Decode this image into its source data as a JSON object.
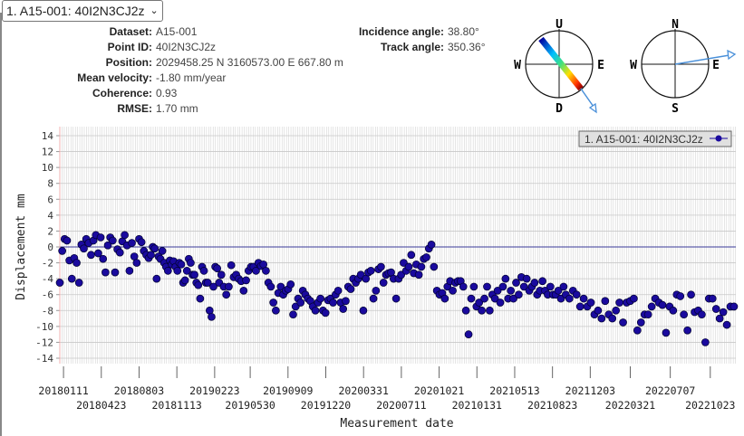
{
  "selector": {
    "value": "1. A15-001: 40I2N3CJ2z"
  },
  "info_left": [
    {
      "label": "Dataset:",
      "value": "A15-001"
    },
    {
      "label": "Point ID:",
      "value": "40I2N3CJ2z"
    },
    {
      "label": "Position:",
      "value": "2029458.25 N 3160573.00 E 667.80 m"
    },
    {
      "label": "Mean velocity:",
      "value": "-1.80 mm/year"
    },
    {
      "label": "Coherence:",
      "value": "0.93"
    },
    {
      "label": "RMSE:",
      "value": "1.70 mm"
    }
  ],
  "info_right": [
    {
      "label": "Incidence angle:",
      "value": "38.80°"
    },
    {
      "label": "Track angle:",
      "value": "350.36°"
    }
  ],
  "compass_vertical": {
    "top": "U",
    "bottom": "D",
    "left": "W",
    "right": "E"
  },
  "compass_horizontal": {
    "top": "N",
    "bottom": "S",
    "left": "W",
    "right": "E"
  },
  "colors": {
    "point": "#1a0a9e",
    "zero_line": "#3a3a9a",
    "arrow": "#4a90d9"
  },
  "chart_data": {
    "type": "scatter",
    "xlabel": "Measurement date",
    "ylabel": "Displacement mm",
    "ylim": [
      -15,
      15
    ],
    "yticks": [
      14,
      12,
      10,
      8,
      6,
      4,
      2,
      0,
      -2,
      -4,
      -6,
      -8,
      -10,
      -12,
      -14
    ],
    "x_unit": "days since 20180111",
    "xlim": [
      -10,
      1815
    ],
    "xtick_labels": [
      "20180111",
      "20180423",
      "20180803",
      "20181113",
      "20190223",
      "20190530",
      "20190909",
      "20191220",
      "20200331",
      "20200711",
      "20201021",
      "20210131",
      "20210513",
      "20210823",
      "20211203",
      "20220321",
      "20220707",
      "20221023"
    ],
    "legend": {
      "label": "1. A15-001: 40I2N3CJ2z",
      "position": "top-right"
    },
    "series_segments": [
      {
        "x0": -10,
        "x1": 230,
        "values": [
          -4.5,
          -0.5,
          1,
          0.8,
          -1.7,
          -4,
          -1.4,
          -2,
          -4.5,
          0.3,
          -0.2,
          1,
          0.5,
          -1,
          0.8,
          1.5,
          -0.8,
          1.2,
          -1.5,
          -3.2,
          0.2,
          1.2,
          0.8,
          -3.2,
          -0.3,
          -0.7,
          0.7,
          1.5,
          0.2,
          -3,
          0.5,
          -1.2,
          -2,
          1,
          0.6,
          -0.5,
          -1,
          -1.4
        ]
      },
      {
        "x0": 236,
        "x1": 420,
        "values": [
          -1,
          0,
          -0.2,
          -4,
          -1.2,
          -1.5,
          -0.5,
          -2,
          -2.5,
          -3,
          -1.7,
          -2.2,
          -1.8,
          -2.5,
          -3,
          -2,
          -2.2,
          -4.5,
          -4.2,
          -3,
          -1.5,
          -2,
          -3.5,
          -3.5,
          -4.5,
          -4.8,
          -6.5,
          -2.5,
          -3,
          -4.5,
          -4.5,
          -8,
          -8.8,
          -5,
          -2.5,
          -2.7,
          -4.5
        ]
      },
      {
        "x0": 426,
        "x1": 640,
        "values": [
          -3.5,
          -5,
          -6,
          -5,
          -2.3,
          -3.8,
          -3.5,
          -4,
          -4.3,
          -5.5,
          -4.2,
          -3,
          -2.5,
          -2.5,
          -3,
          -2,
          -2.4,
          -2.2,
          -3,
          -4.5,
          -5,
          -7,
          -8,
          -5.8,
          -5,
          -6,
          -5.5,
          -5.3,
          -4.7,
          -8.5,
          -7.5,
          -6.5,
          -7
        ]
      },
      {
        "x0": 646,
        "x1": 1000,
        "values": [
          -5.5,
          -6,
          -6.5,
          -6.8,
          -7.5,
          -8,
          -7,
          -6.5,
          -8,
          -8.3,
          -6.7,
          -6.5,
          -7,
          -6,
          -5.5,
          -7,
          -7.8,
          -6.8,
          -5,
          -5.3,
          -4,
          -4.5,
          -4,
          -3.5,
          -8,
          -4,
          -3.2,
          -3,
          -6.5,
          -5.5,
          -2.8,
          -2.5,
          -4.5,
          -3.5,
          -3.3,
          -3.2,
          -4,
          -6.5,
          -4,
          -3.5,
          -2,
          -3,
          -2.5,
          -1,
          -3.3,
          -2.2,
          -3.5,
          -2.5,
          -1.5,
          -1.3,
          -0.2,
          0.3,
          -2.5
        ]
      },
      {
        "x0": 1008,
        "x1": 1350,
        "values": [
          -5.5,
          -6,
          -5.8,
          -6.5,
          -5,
          -4.3,
          -5.5,
          -4.5,
          -4.3,
          -4.3,
          -5,
          -8,
          -11,
          -6.5,
          -5,
          -7.5,
          -7,
          -8,
          -6.5,
          -5,
          -8,
          -6,
          -6.5,
          -5.5,
          -7,
          -5,
          -4,
          -6.5,
          -5.5,
          -6.5,
          -4.5,
          -6,
          -3.8,
          -5,
          -4,
          -5.5,
          -5,
          -4.5,
          -6,
          -5.5,
          -4.3,
          -5.5,
          -6,
          -5,
          -6,
          -6,
          -5.5,
          -6.5,
          -5
        ]
      },
      {
        "x0": 1356,
        "x1": 1810,
        "values": [
          -6,
          -6.5,
          -5.5,
          -6,
          -7.5,
          -6.5,
          -7.5,
          -7,
          -8.5,
          -8,
          -9,
          -6.8,
          -8.5,
          -9,
          -8,
          -7,
          -9.5,
          -7,
          -6.8,
          -6.5,
          -10.5,
          -9.5,
          -8.5,
          -8.5,
          -7.5,
          -6.5,
          -7,
          -7.3,
          -10.8,
          -7.5,
          -8,
          -6,
          -6.2,
          -8.5,
          -10.5,
          -6,
          -8.2,
          -8,
          -8.5,
          -12,
          -6.5,
          -6.5,
          -7.8,
          -9,
          -8.2,
          -9.8,
          -7.5,
          -7.5
        ]
      }
    ]
  }
}
